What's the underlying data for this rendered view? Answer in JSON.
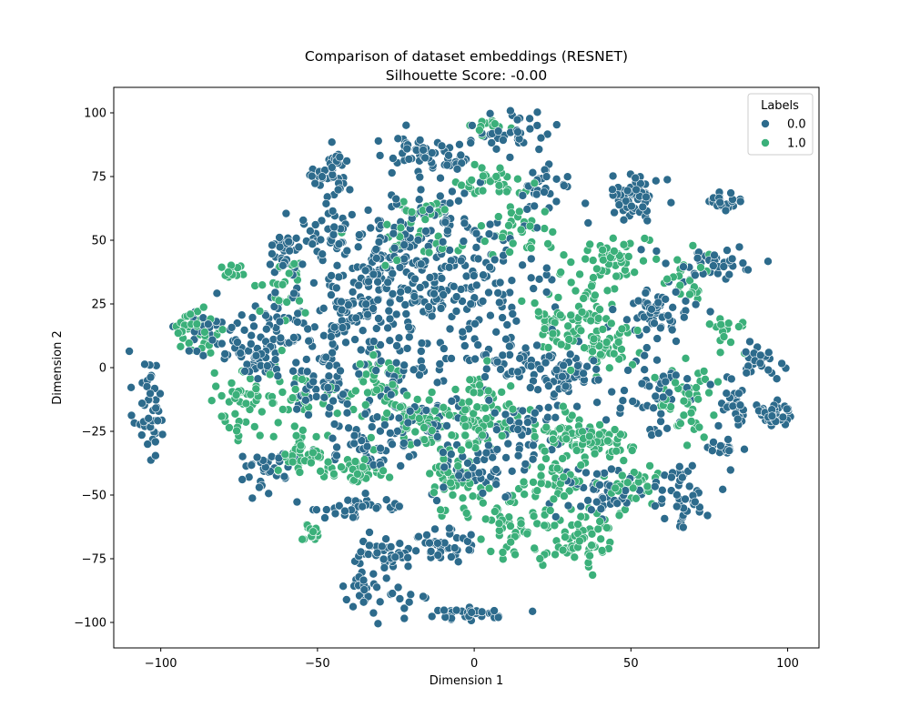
{
  "chart_data": {
    "type": "scatter",
    "title": "Comparison of dataset embeddings (RESNET)",
    "subtitle": "Silhouette Score: -0.00",
    "xlabel": "Dimension 1",
    "ylabel": "Dimension 2",
    "xlim": [
      -115,
      110
    ],
    "ylim": [
      -110,
      110
    ],
    "xticks": [
      -100,
      -50,
      0,
      50,
      100
    ],
    "xtick_labels": [
      "−100",
      "−50",
      "0",
      "50",
      "100"
    ],
    "yticks": [
      -100,
      -75,
      -50,
      -25,
      0,
      25,
      50,
      75,
      100
    ],
    "ytick_labels": [
      "−100",
      "−75",
      "−50",
      "−25",
      "0",
      "25",
      "50",
      "75",
      "100"
    ],
    "grid": false,
    "legend": {
      "title": "Labels",
      "placement": "top-right"
    },
    "series": [
      {
        "name": "0.0",
        "color": "#2d6b8c",
        "clusters": [
          {
            "x": -104,
            "y": -15,
            "sx": 2.5,
            "sy": 11,
            "n": 45
          },
          {
            "x": -82,
            "y": 14,
            "sx": 6,
            "sy": 6,
            "n": 45
          },
          {
            "x": -70,
            "y": 4,
            "sx": 4,
            "sy": 4,
            "n": 40
          },
          {
            "x": -60,
            "y": 45,
            "sx": 3,
            "sy": 6,
            "n": 35
          },
          {
            "x": -62,
            "y": 18,
            "sx": 4,
            "sy": 8,
            "n": 35
          },
          {
            "x": -45,
            "y": 75,
            "sx": 3,
            "sy": 5,
            "n": 40
          },
          {
            "x": -43,
            "y": 52,
            "sx": 8,
            "sy": 5,
            "n": 45
          },
          {
            "x": -42,
            "y": 22,
            "sx": 6,
            "sy": 12,
            "n": 70
          },
          {
            "x": -48,
            "y": -5,
            "sx": 6,
            "sy": 8,
            "n": 55
          },
          {
            "x": -30,
            "y": 40,
            "sx": 8,
            "sy": 8,
            "n": 55
          },
          {
            "x": -25,
            "y": 10,
            "sx": 8,
            "sy": 8,
            "n": 45
          },
          {
            "x": -15,
            "y": 83,
            "sx": 10,
            "sy": 4,
            "n": 60
          },
          {
            "x": -12,
            "y": 55,
            "sx": 10,
            "sy": 7,
            "n": 80
          },
          {
            "x": -18,
            "y": 30,
            "sx": 10,
            "sy": 8,
            "n": 70
          },
          {
            "x": -18,
            "y": -15,
            "sx": 8,
            "sy": 8,
            "n": 60
          },
          {
            "x": -33,
            "y": -30,
            "sx": 8,
            "sy": 5,
            "n": 50
          },
          {
            "x": -65,
            "y": -40,
            "sx": 6,
            "sy": 4,
            "n": 35
          },
          {
            "x": -38,
            "y": -55,
            "sx": 9,
            "sy": 2,
            "n": 40
          },
          {
            "x": -27,
            "y": -72,
            "sx": 5,
            "sy": 3,
            "n": 30
          },
          {
            "x": -10,
            "y": -70,
            "sx": 6,
            "sy": 4,
            "n": 40
          },
          {
            "x": -33,
            "y": -87,
            "sx": 6,
            "sy": 5,
            "n": 45
          },
          {
            "x": -2,
            "y": -97,
            "sx": 8,
            "sy": 1.5,
            "n": 35
          },
          {
            "x": 5,
            "y": 30,
            "sx": 10,
            "sy": 12,
            "n": 80
          },
          {
            "x": 10,
            "y": 5,
            "sx": 8,
            "sy": 6,
            "n": 50
          },
          {
            "x": 13,
            "y": 93,
            "sx": 7,
            "sy": 3,
            "n": 35
          },
          {
            "x": 15,
            "y": -25,
            "sx": 8,
            "sy": 10,
            "n": 60
          },
          {
            "x": 0,
            "y": -40,
            "sx": 7,
            "sy": 6,
            "n": 40
          },
          {
            "x": 22,
            "y": 70,
            "sx": 4,
            "sy": 5,
            "n": 30
          },
          {
            "x": 30,
            "y": -3,
            "sx": 5,
            "sy": 4,
            "n": 50
          },
          {
            "x": 40,
            "y": -48,
            "sx": 10,
            "sy": 5,
            "n": 50
          },
          {
            "x": 52,
            "y": 68,
            "sx": 4,
            "sy": 4,
            "n": 60
          },
          {
            "x": 57,
            "y": 20,
            "sx": 6,
            "sy": 5,
            "n": 55
          },
          {
            "x": 58,
            "y": -10,
            "sx": 7,
            "sy": 8,
            "n": 50
          },
          {
            "x": 66,
            "y": -50,
            "sx": 5,
            "sy": 7,
            "n": 40
          },
          {
            "x": 75,
            "y": 40,
            "sx": 8,
            "sy": 4,
            "n": 40
          },
          {
            "x": 80,
            "y": 65,
            "sx": 3,
            "sy": 1.5,
            "n": 25
          },
          {
            "x": 82,
            "y": -15,
            "sx": 3,
            "sy": 6,
            "n": 25
          },
          {
            "x": 80,
            "y": -32,
            "sx": 3,
            "sy": 1.5,
            "n": 20
          },
          {
            "x": 95,
            "y": -18,
            "sx": 3,
            "sy": 3,
            "n": 40
          },
          {
            "x": 90,
            "y": 2,
            "sx": 4,
            "sy": 4,
            "n": 25
          }
        ]
      },
      {
        "name": "1.0",
        "color": "#3bb07a",
        "clusters": [
          {
            "x": -88,
            "y": 13,
            "sx": 4,
            "sy": 5,
            "n": 35
          },
          {
            "x": -75,
            "y": -15,
            "sx": 6,
            "sy": 8,
            "n": 40
          },
          {
            "x": -76,
            "y": 38,
            "sx": 2,
            "sy": 2,
            "n": 12
          },
          {
            "x": -55,
            "y": -35,
            "sx": 4,
            "sy": 3,
            "n": 35
          },
          {
            "x": -60,
            "y": -15,
            "sx": 5,
            "sy": 10,
            "n": 35
          },
          {
            "x": -60,
            "y": 30,
            "sx": 4,
            "sy": 6,
            "n": 25
          },
          {
            "x": -52,
            "y": -65,
            "sx": 2,
            "sy": 2,
            "n": 15
          },
          {
            "x": -40,
            "y": -40,
            "sx": 8,
            "sy": 3,
            "n": 40
          },
          {
            "x": -30,
            "y": -8,
            "sx": 6,
            "sy": 6,
            "n": 45
          },
          {
            "x": -18,
            "y": -20,
            "sx": 5,
            "sy": 5,
            "n": 40
          },
          {
            "x": 0,
            "y": -20,
            "sx": 8,
            "sy": 8,
            "n": 80
          },
          {
            "x": -5,
            "y": -45,
            "sx": 6,
            "sy": 6,
            "n": 45
          },
          {
            "x": 8,
            "y": 72,
            "sx": 6,
            "sy": 3,
            "n": 35
          },
          {
            "x": 5,
            "y": 95,
            "sx": 3,
            "sy": 2,
            "n": 12
          },
          {
            "x": 15,
            "y": 55,
            "sx": 5,
            "sy": 5,
            "n": 30
          },
          {
            "x": 10,
            "y": -62,
            "sx": 6,
            "sy": 6,
            "n": 50
          },
          {
            "x": 25,
            "y": -45,
            "sx": 6,
            "sy": 8,
            "n": 50
          },
          {
            "x": 32,
            "y": -25,
            "sx": 6,
            "sy": 4,
            "n": 50
          },
          {
            "x": 35,
            "y": 25,
            "sx": 6,
            "sy": 12,
            "n": 60
          },
          {
            "x": 35,
            "y": -68,
            "sx": 6,
            "sy": 6,
            "n": 60
          },
          {
            "x": 40,
            "y": 10,
            "sx": 5,
            "sy": 6,
            "n": 45
          },
          {
            "x": 45,
            "y": 45,
            "sx": 5,
            "sy": 5,
            "n": 35
          },
          {
            "x": 40,
            "y": -30,
            "sx": 5,
            "sy": 4,
            "n": 40
          },
          {
            "x": 50,
            "y": -45,
            "sx": 5,
            "sy": 5,
            "n": 30
          },
          {
            "x": 67,
            "y": -10,
            "sx": 5,
            "sy": 8,
            "n": 45
          },
          {
            "x": 70,
            "y": 35,
            "sx": 4,
            "sy": 5,
            "n": 25
          },
          {
            "x": 25,
            "y": 15,
            "sx": 4,
            "sy": 4,
            "n": 25
          },
          {
            "x": -20,
            "y": 50,
            "sx": 8,
            "sy": 6,
            "n": 30
          },
          {
            "x": -15,
            "y": 62,
            "sx": 4,
            "sy": 1.5,
            "n": 15
          },
          {
            "x": 82,
            "y": 15,
            "sx": 3,
            "sy": 4,
            "n": 15
          }
        ]
      }
    ]
  }
}
